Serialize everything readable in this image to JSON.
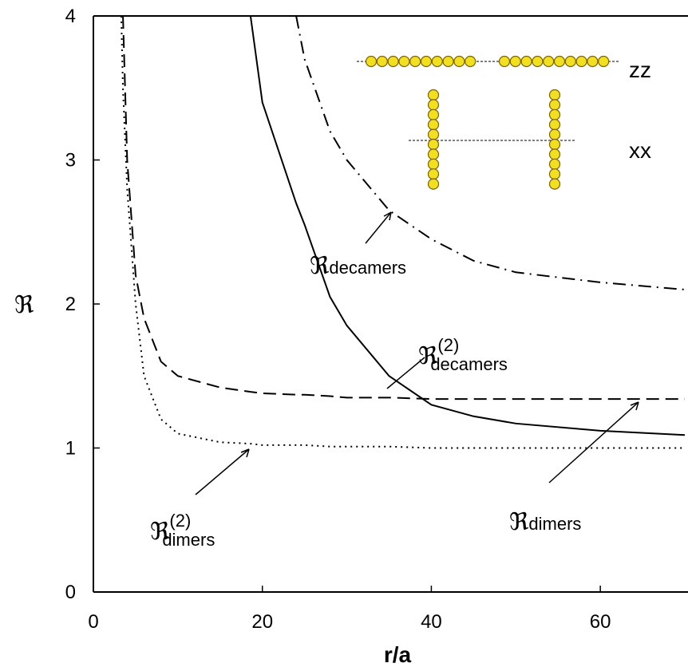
{
  "chart_data": {
    "type": "line",
    "x_label": "r/a",
    "y_label": "ℜ",
    "xlim": [
      0,
      70
    ],
    "ylim": [
      0,
      4
    ],
    "xticks": [
      0,
      20,
      40,
      60
    ],
    "yticks": [
      0,
      1,
      2,
      3,
      4
    ],
    "x": [
      3.3,
      3.5,
      4,
      5,
      6,
      8,
      10,
      15,
      18.6,
      20,
      24,
      25,
      28,
      30,
      35,
      40,
      45,
      50,
      60,
      70
    ],
    "series": [
      {
        "color": "#000000",
        "dash": "dotted",
        "values": [
          4,
          3.5,
          2.8,
          2.0,
          1.5,
          1.2,
          1.1,
          1.04,
          1.03,
          1.02,
          1.02,
          1.02,
          1.01,
          1.01,
          1.01,
          1.0,
          1.0,
          1.0,
          1.0,
          1.0
        ]
      },
      {
        "color": "#000000",
        "dash": "dashed",
        "values": [
          null,
          4,
          3.0,
          2.2,
          1.9,
          1.6,
          1.5,
          1.42,
          1.39,
          1.38,
          1.37,
          1.37,
          1.36,
          1.35,
          1.35,
          1.34,
          1.34,
          1.34,
          1.34,
          1.34
        ]
      },
      {
        "color": "#000000",
        "dash": "solid",
        "values": [
          null,
          null,
          null,
          null,
          null,
          null,
          null,
          null,
          4,
          3.4,
          2.7,
          2.55,
          2.05,
          1.85,
          1.5,
          1.3,
          1.22,
          1.17,
          1.12,
          1.09
        ]
      },
      {
        "color": "#000000",
        "dash": "dashdot",
        "values": [
          null,
          null,
          null,
          null,
          null,
          null,
          null,
          null,
          null,
          null,
          4,
          3.7,
          3.2,
          3.0,
          2.65,
          2.45,
          2.3,
          2.22,
          2.15,
          2.1
        ]
      }
    ],
    "annotations": [
      {
        "symbol": "ℜ",
        "sub": "decamers"
      },
      {
        "symbol": "ℜ",
        "sup": "(2)",
        "sub": "decamers"
      },
      {
        "symbol": "ℜ",
        "sup": "(2)",
        "sub": "dimers"
      },
      {
        "symbol": "ℜ",
        "sub": "dimers"
      }
    ],
    "inset_labels": [
      "zz",
      "xx"
    ]
  }
}
